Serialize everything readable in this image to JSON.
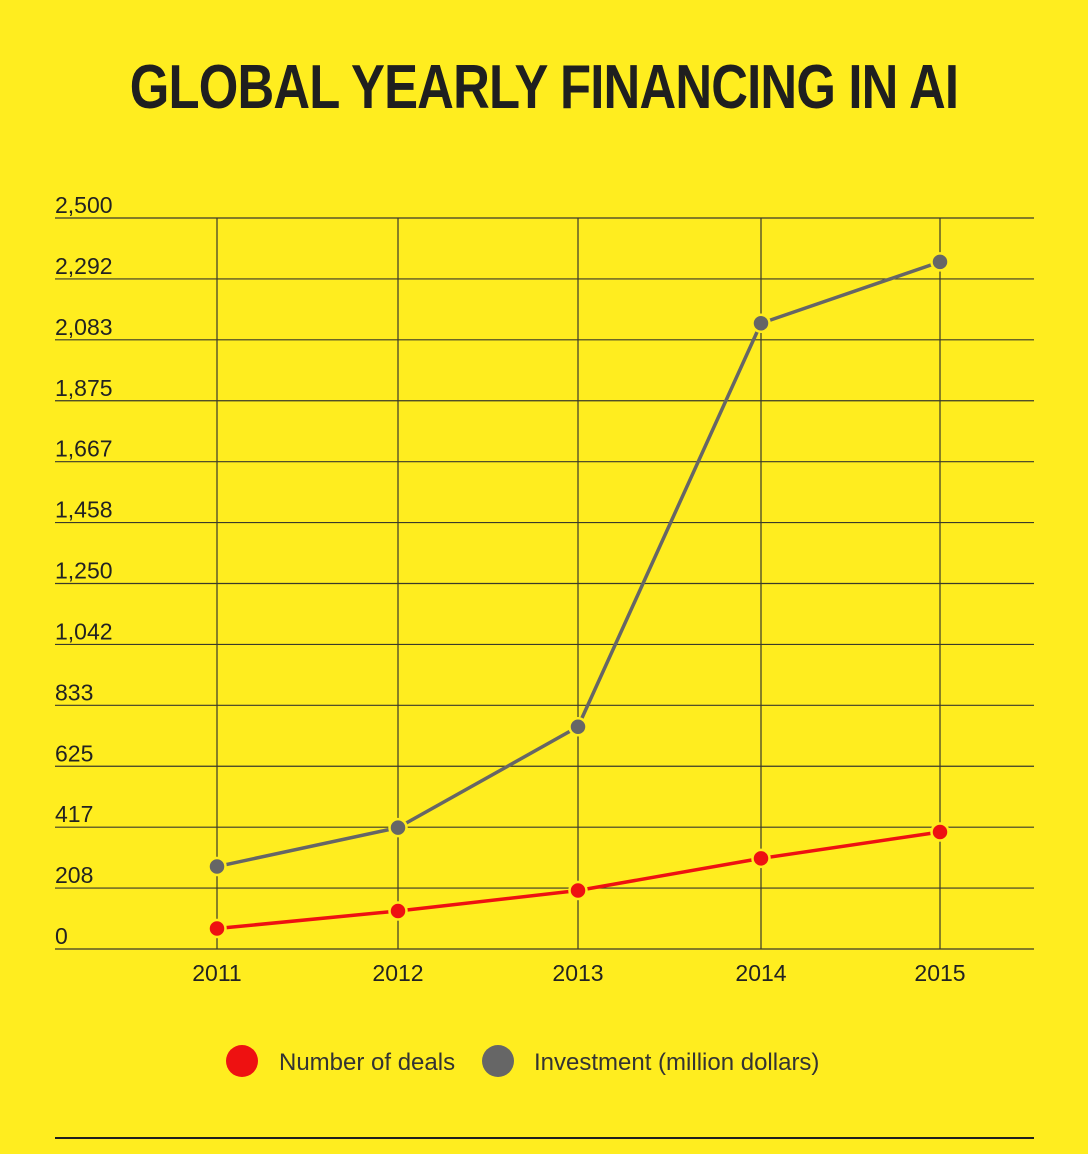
{
  "chart_data": {
    "type": "line",
    "title": "GLOBAL YEARLY FINANCING IN AI",
    "categories": [
      "2011",
      "2012",
      "2013",
      "2014",
      "2015"
    ],
    "y_ticks": [
      "0",
      "208",
      "417",
      "625",
      "833",
      "1,042",
      "1,250",
      "1,458",
      "1,667",
      "1,875",
      "2,083",
      "2,292",
      "2,500"
    ],
    "ylim": [
      0,
      2500
    ],
    "grid": true,
    "legend_position": "bottom-center",
    "series": [
      {
        "name": "Number of deals",
        "color": "#EE1111",
        "values": [
          70,
          130,
          200,
          310,
          400
        ]
      },
      {
        "name": "Investment (million dollars)",
        "color": "#666666",
        "values": [
          282,
          415,
          760,
          2140,
          2350
        ]
      }
    ]
  }
}
